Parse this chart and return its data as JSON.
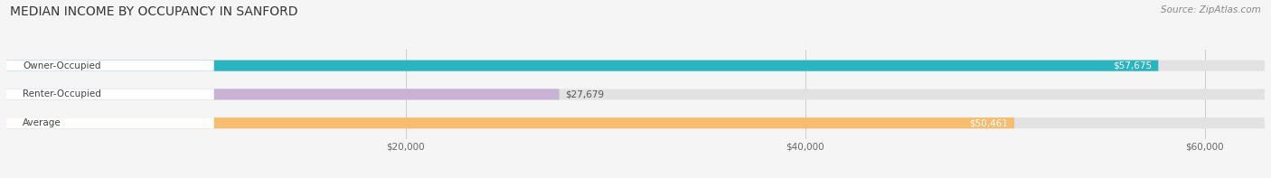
{
  "title": "MEDIAN INCOME BY OCCUPANCY IN SANFORD",
  "source": "Source: ZipAtlas.com",
  "categories": [
    "Owner-Occupied",
    "Renter-Occupied",
    "Average"
  ],
  "values": [
    57675,
    27679,
    50461
  ],
  "bar_colors": [
    "#29b5bf",
    "#c8b2d6",
    "#f7bc6e"
  ],
  "value_labels": [
    "$57,675",
    "$27,679",
    "$50,461"
  ],
  "xlim_max": 63000,
  "xticks": [
    20000,
    40000,
    60000
  ],
  "xtick_labels": [
    "$20,000",
    "$40,000",
    "$60,000"
  ],
  "background_color": "#f5f5f5",
  "bar_bg_color": "#e2e2e2",
  "title_fontsize": 10,
  "source_fontsize": 7.5,
  "label_fontsize": 7.5,
  "value_fontsize": 7.5
}
